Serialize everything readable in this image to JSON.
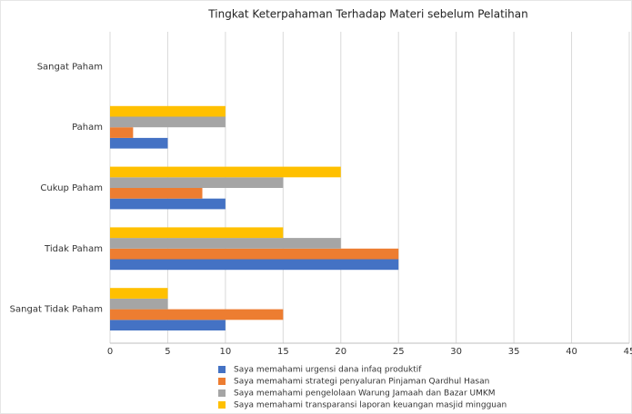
{
  "chart_data": {
    "type": "bar",
    "orientation": "horizontal",
    "title": "Tingkat Keterpahaman Terhadap Materi sebelum Pelatihan",
    "categories": [
      "Sangat Paham",
      "Paham",
      "Cukup Paham",
      "Tidak Paham",
      "Sangat Tidak Paham"
    ],
    "series": [
      {
        "name": "Saya memahami urgensi dana infaq produktif",
        "color": "#4472c4",
        "values": [
          0,
          5,
          10,
          25,
          10
        ]
      },
      {
        "name": "Saya memahami strategi penyaluran Pinjaman Qardhul Hasan",
        "color": "#ed7d31",
        "values": [
          0,
          2,
          8,
          25,
          15
        ]
      },
      {
        "name": "Saya memahami pengelolaan Warung Jamaah dan Bazar UMKM",
        "color": "#a5a5a5",
        "values": [
          0,
          10,
          15,
          20,
          5
        ]
      },
      {
        "name": "Saya memahami transparansi laporan keuangan masjid mingguan",
        "color": "#ffc000",
        "values": [
          0,
          10,
          20,
          15,
          5
        ]
      }
    ],
    "xlim": [
      0,
      45
    ],
    "xticks": [
      0,
      5,
      10,
      15,
      20,
      25,
      30,
      35,
      40,
      45
    ],
    "grid": true,
    "legend": "bottom"
  }
}
